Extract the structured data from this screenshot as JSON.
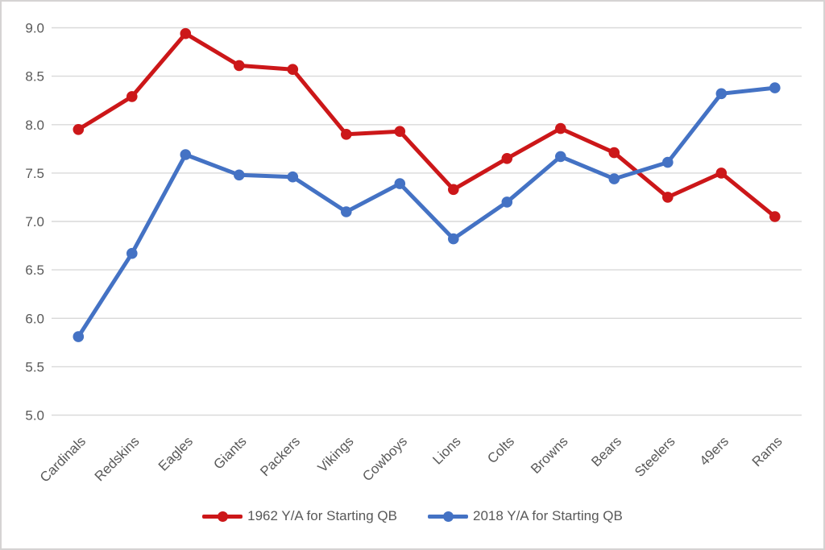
{
  "chart_data": {
    "type": "line",
    "title": "",
    "xlabel": "",
    "ylabel": "",
    "categories": [
      "Cardinals",
      "Redskins",
      "Eagles",
      "Giants",
      "Packers",
      "Vikings",
      "Cowboys",
      "Lions",
      "Colts",
      "Browns",
      "Bears",
      "Steelers",
      "49ers",
      "Rams"
    ],
    "series": [
      {
        "name": "1962 Y/A for Starting QB",
        "color": "#cc1719",
        "marker": "circle",
        "values": [
          7.95,
          8.29,
          8.94,
          8.61,
          8.57,
          7.9,
          7.93,
          7.33,
          7.65,
          7.96,
          7.71,
          7.25,
          7.5,
          7.05
        ]
      },
      {
        "name": "2018 Y/A for Starting QB",
        "color": "#4472c4",
        "marker": "circle",
        "values": [
          5.81,
          6.67,
          7.69,
          7.48,
          7.46,
          7.1,
          7.39,
          6.82,
          7.2,
          7.67,
          7.44,
          7.61,
          8.32,
          8.38
        ]
      }
    ],
    "ylim": [
      5.0,
      9.0
    ],
    "ytick_step": 0.5,
    "ytick_labels": [
      "9.0",
      "8.5",
      "8.0",
      "7.5",
      "7.0",
      "6.5",
      "6.0",
      "5.5",
      "5.0"
    ],
    "grid": true,
    "x_label_rotation_deg": 45,
    "legend_position": "bottom-center"
  },
  "style": {
    "gridline_color": "#d9d9d9",
    "label_color": "#595959",
    "background": "#ffffff",
    "frame_border_color": "#d5d3d3"
  }
}
